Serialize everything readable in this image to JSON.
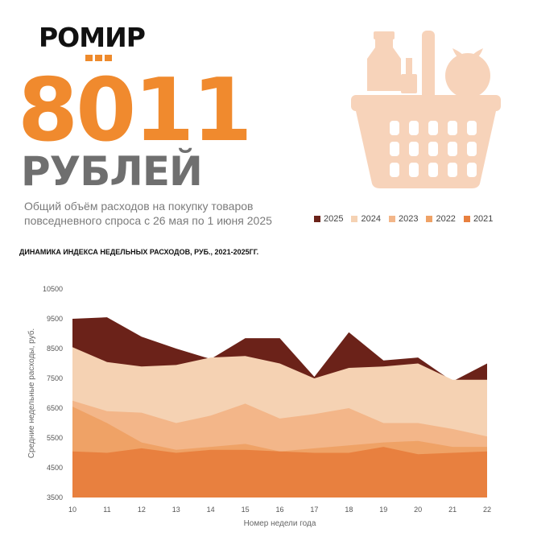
{
  "header": {
    "logo": "РОМИР",
    "amount": "8011",
    "unit": "РУБЛЕЙ",
    "subtitle": "Общий объём расходов на покупку товаров повседневного спроса с 26 мая по 1 июня 2025"
  },
  "colors": {
    "accent": "#f08a2e",
    "unit_text": "#6f6f6f",
    "basket": "#f7d3ba"
  },
  "icons": [
    "basket-icon"
  ],
  "chart_data": {
    "type": "area",
    "title": "ДИНАМИКА ИНДЕКСА НЕДЕЛЬНЫХ РАСХОДОВ, РУБ., 2021-2025ГГ.",
    "xlabel": "Номер недели года",
    "ylabel": "Средние недельные расходы, руб.",
    "x": [
      10,
      11,
      12,
      13,
      14,
      15,
      16,
      17,
      18,
      19,
      20,
      21,
      22
    ],
    "ylim": [
      3500,
      10500
    ],
    "yticks": [
      3500,
      4500,
      5500,
      6500,
      7500,
      8500,
      9500,
      10500
    ],
    "grid": false,
    "legend_position": "top-right",
    "legend_order": [
      "2025",
      "2024",
      "2023",
      "2022",
      "2021"
    ],
    "series": [
      {
        "name": "2025",
        "color": "#6b2219",
        "values": [
          9500,
          9550,
          8900,
          8500,
          8150,
          8850,
          8850,
          7550,
          9050,
          8100,
          8200,
          7400,
          8000
        ]
      },
      {
        "name": "2024",
        "color": "#f5d2b3",
        "values": [
          8550,
          8050,
          7900,
          7950,
          8200,
          8250,
          8000,
          7500,
          7850,
          7900,
          8000,
          7450,
          7450
        ]
      },
      {
        "name": "2023",
        "color": "#f3b689",
        "values": [
          6750,
          6400,
          6350,
          6000,
          6250,
          6650,
          6150,
          6300,
          6500,
          6000,
          6000,
          5800,
          5550
        ]
      },
      {
        "name": "2022",
        "color": "#efa266",
        "values": [
          6550,
          6000,
          5350,
          5100,
          5200,
          5300,
          5050,
          5150,
          5250,
          5350,
          5400,
          5200,
          5200
        ]
      },
      {
        "name": "2021",
        "color": "#e8803f",
        "values": [
          5050,
          5000,
          5150,
          5000,
          5100,
          5100,
          5050,
          5000,
          5000,
          5200,
          4950,
          5000,
          5050
        ]
      }
    ]
  }
}
